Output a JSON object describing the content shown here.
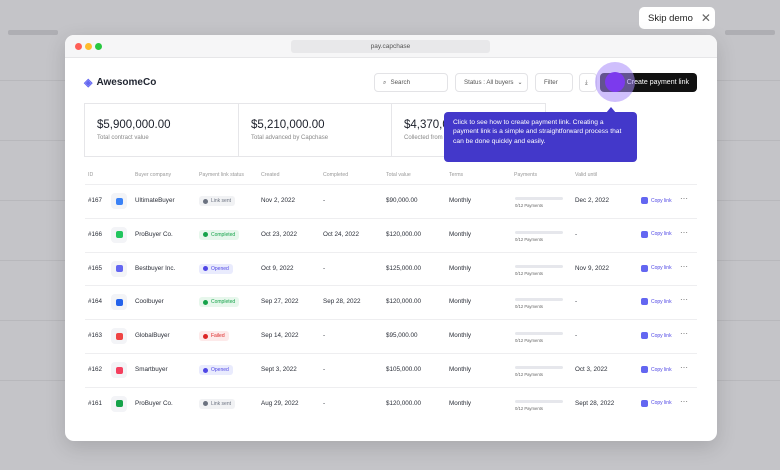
{
  "skip_button": "Skip demo",
  "browser": {
    "url": "pay.capchase"
  },
  "header": {
    "logo": "AwesomeCo",
    "search": "Search",
    "status_filter": "Status : All buyers",
    "filter": "Filter",
    "create_button": "Create payment link"
  },
  "stats": [
    {
      "value": "$5,900,000.00",
      "label": "Total contract value"
    },
    {
      "value": "$5,210,000.00",
      "label": "Total advanced by Capchase"
    },
    {
      "value": "$4,370,0",
      "label": "Collected from"
    }
  ],
  "tooltip": "Click to see how to create payment link. Creating a payment link is a simple and straightforward process that can be done quickly and easily.",
  "table": {
    "columns": [
      "ID",
      "Buyer company",
      "Payment link status",
      "Created",
      "Completed",
      "Total value",
      "Terms",
      "Payments",
      "Valid until"
    ],
    "rows": [
      {
        "id": "#167",
        "company": "UltimateBuyer",
        "logo_color": "#3b82f6",
        "status": "Link sent",
        "status_bg": "#f1f2f4",
        "status_color": "#6b7280",
        "created": "Nov 2, 2022",
        "completed": "-",
        "total": "$90,000.00",
        "terms": "Monthly",
        "payments": "0/12 Payments",
        "valid_until": "Dec 2, 2022",
        "action": "Copy link"
      },
      {
        "id": "#166",
        "company": "ProBuyer Co.",
        "logo_color": "#22c55e",
        "status": "Completed",
        "status_bg": "#e7f7ec",
        "status_color": "#16a34a",
        "created": "Oct 23, 2022",
        "completed": "Oct 24, 2022",
        "total": "$120,000.00",
        "terms": "Monthly",
        "payments": "0/12 Payments",
        "valid_until": "-",
        "action": "Copy link"
      },
      {
        "id": "#165",
        "company": "Bestbuyer Inc.",
        "logo_color": "#6366f1",
        "status": "Opened",
        "status_bg": "#e9ebfd",
        "status_color": "#4f46e5",
        "created": "Oct 9, 2022",
        "completed": "-",
        "total": "$125,000.00",
        "terms": "Monthly",
        "payments": "0/12 Payments",
        "valid_until": "Nov 9, 2022",
        "action": "Copy link"
      },
      {
        "id": "#164",
        "company": "Coolbuyer",
        "logo_color": "#2563eb",
        "status": "Completed",
        "status_bg": "#e7f7ec",
        "status_color": "#16a34a",
        "created": "Sep 27, 2022",
        "completed": "Sep 28, 2022",
        "total": "$120,000.00",
        "terms": "Monthly",
        "payments": "0/12 Payments",
        "valid_until": "-",
        "action": "Copy link"
      },
      {
        "id": "#163",
        "company": "GlobalBuyer",
        "logo_color": "#ef4444",
        "status": "Failed",
        "status_bg": "#fdeaea",
        "status_color": "#dc2626",
        "created": "Sep 14, 2022",
        "completed": "-",
        "total": "$95,000.00",
        "terms": "Monthly",
        "payments": "0/12 Payments",
        "valid_until": "-",
        "action": "Copy link"
      },
      {
        "id": "#162",
        "company": "Smartbuyer",
        "logo_color": "#f43f5e",
        "status": "Opened",
        "status_bg": "#e9ebfd",
        "status_color": "#4f46e5",
        "created": "Sept 3, 2022",
        "completed": "-",
        "total": "$105,000.00",
        "terms": "Monthly",
        "payments": "0/12 Payments",
        "valid_until": "Oct 3, 2022",
        "action": "Copy link"
      },
      {
        "id": "#161",
        "company": "ProBuyer Co.",
        "logo_color": "#16a34a",
        "status": "Link sent",
        "status_bg": "#f1f2f4",
        "status_color": "#6b7280",
        "created": "Aug 29, 2022",
        "completed": "-",
        "total": "$120,000.00",
        "terms": "Monthly",
        "payments": "0/12 Payments",
        "valid_until": "Sept 28, 2022",
        "action": "Copy link"
      }
    ]
  }
}
